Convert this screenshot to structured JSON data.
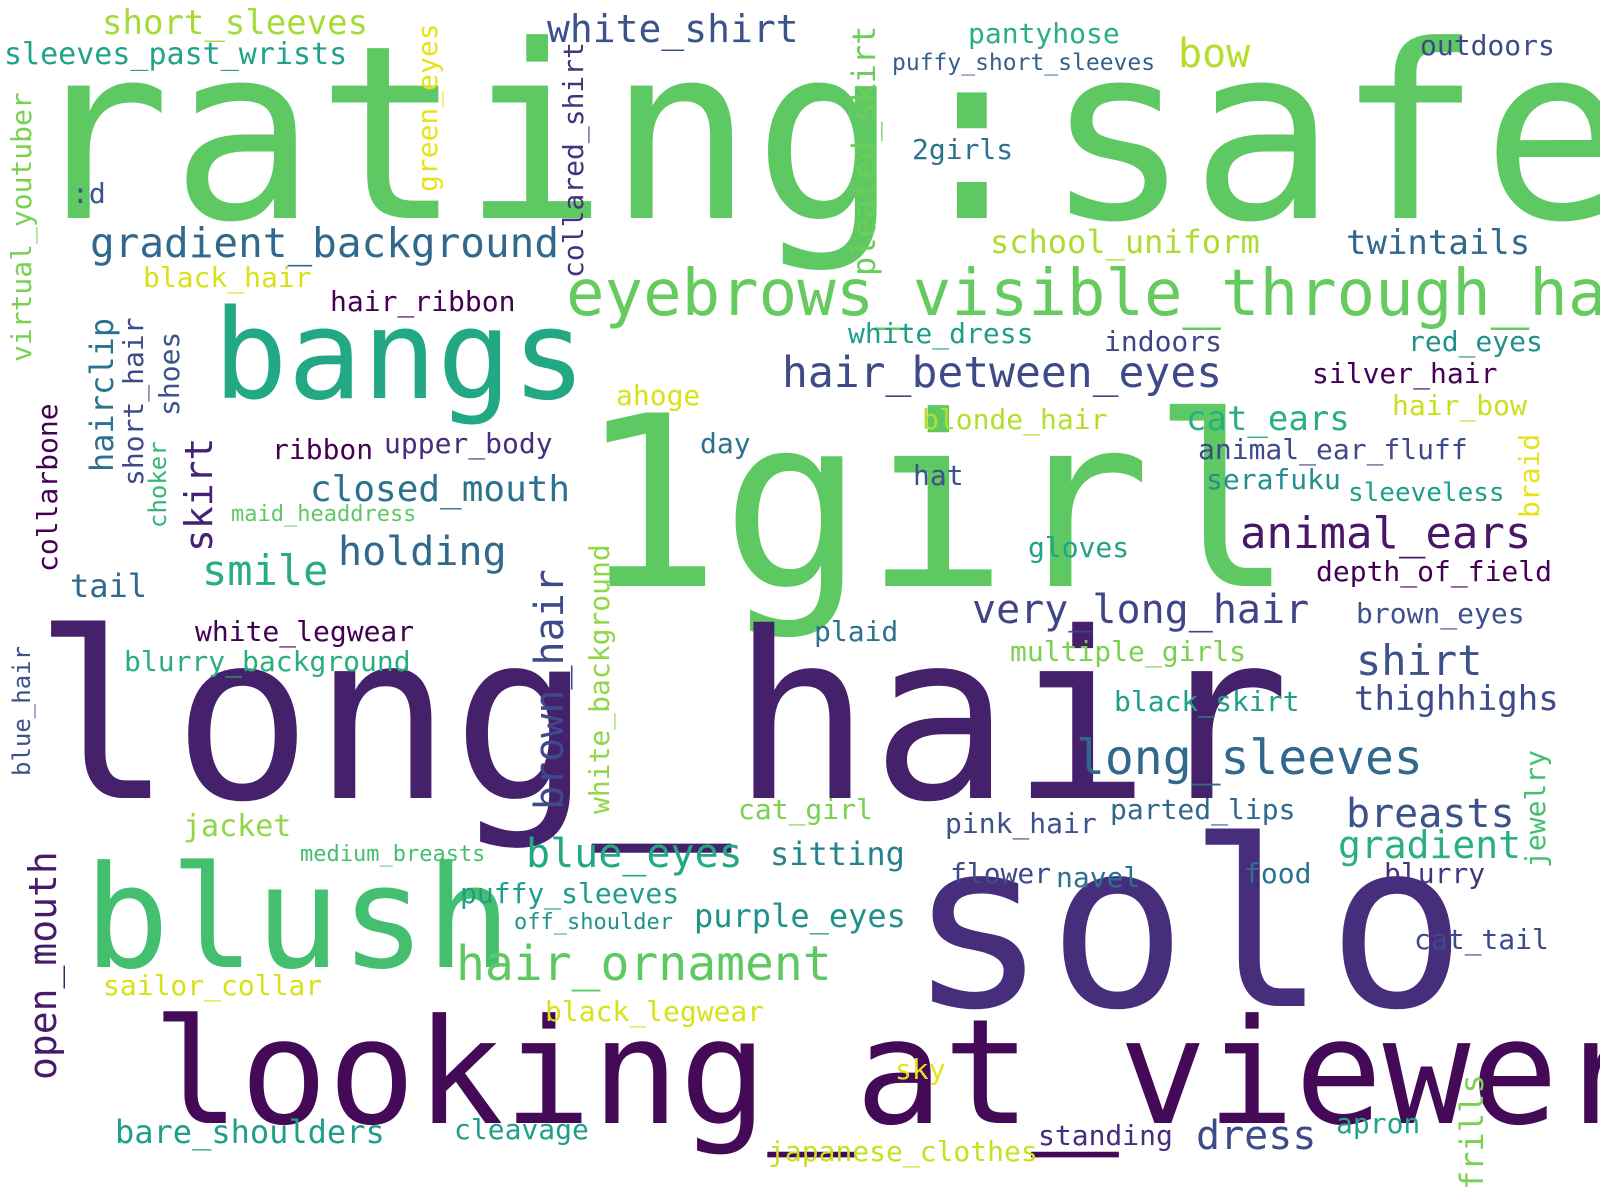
{
  "words": [
    {
      "text": "rating:safe",
      "color": "#5ec962"
    },
    {
      "text": "1girl",
      "color": "#5ec962"
    },
    {
      "text": "long_hair",
      "color": "#46216b"
    },
    {
      "text": "solo",
      "color": "#472e7c"
    },
    {
      "text": "looking_at_viewer",
      "color": "#440a57"
    },
    {
      "text": "blush",
      "color": "#44bf70"
    },
    {
      "text": "bangs",
      "color": "#22a884"
    },
    {
      "text": "eyebrows_visible_through_hair",
      "color": "#65cb5e"
    },
    {
      "text": "gradient_background",
      "color": "#31688e"
    },
    {
      "text": "hair_between_eyes",
      "color": "#3e4a89"
    },
    {
      "text": "white_shirt",
      "color": "#3b528b"
    },
    {
      "text": "short_sleeves",
      "color": "#a5db36"
    },
    {
      "text": "sleeves_past_wrists",
      "color": "#20a386"
    },
    {
      "text": "pantyhose",
      "color": "#2ab07f"
    },
    {
      "text": "puffy_short_sleeves",
      "color": "#35608d"
    },
    {
      "text": "outdoors",
      "color": "#3e4a89"
    },
    {
      "text": "bow",
      "color": "#b5de2b"
    },
    {
      "text": "2girls",
      "color": "#2c728e"
    },
    {
      "text": "school_uniform",
      "color": "#addc30"
    },
    {
      "text": "twintails",
      "color": "#31688e"
    },
    {
      "text": ":d",
      "color": "#3b528b"
    },
    {
      "text": "black_hair",
      "color": "#d8e219"
    },
    {
      "text": "hair_ribbon",
      "color": "#440154"
    },
    {
      "text": "white_dress",
      "color": "#1f9e89"
    },
    {
      "text": "indoors",
      "color": "#414487"
    },
    {
      "text": "red_eyes",
      "color": "#21918c"
    },
    {
      "text": "silver_hair",
      "color": "#440154"
    },
    {
      "text": "hair_bow",
      "color": "#c8e020"
    },
    {
      "text": "ahoge",
      "color": "#d8e219"
    },
    {
      "text": "blonde_hair",
      "color": "#b5de2b"
    },
    {
      "text": "cat_ears",
      "color": "#2ab07f"
    },
    {
      "text": "animal_ear_fluff",
      "color": "#3e4a89"
    },
    {
      "text": "ribbon",
      "color": "#440154"
    },
    {
      "text": "upper_body",
      "color": "#472d7b"
    },
    {
      "text": "day",
      "color": "#2c728e"
    },
    {
      "text": "hat",
      "color": "#3b528b"
    },
    {
      "text": "serafuku",
      "color": "#21918c"
    },
    {
      "text": "sleeveless",
      "color": "#1f9e89"
    },
    {
      "text": "closed_mouth",
      "color": "#2c728e"
    },
    {
      "text": "maid_headdress",
      "color": "#5ec962"
    },
    {
      "text": "animal_ears",
      "color": "#481769"
    },
    {
      "text": "holding",
      "color": "#31688e"
    },
    {
      "text": "smile",
      "color": "#27ad81"
    },
    {
      "text": "gloves",
      "color": "#20a386"
    },
    {
      "text": "depth_of_field",
      "color": "#440154"
    },
    {
      "text": "tail",
      "color": "#31688e"
    },
    {
      "text": "very_long_hair",
      "color": "#414487"
    },
    {
      "text": "brown_eyes",
      "color": "#3b528b"
    },
    {
      "text": "white_legwear",
      "color": "#440154"
    },
    {
      "text": "plaid",
      "color": "#2c728e"
    },
    {
      "text": "blurry_background",
      "color": "#29af7f"
    },
    {
      "text": "multiple_girls",
      "color": "#7ad151"
    },
    {
      "text": "shirt",
      "color": "#3b528b"
    },
    {
      "text": "thighhighs",
      "color": "#3e4a89"
    },
    {
      "text": "black_skirt",
      "color": "#1fa088"
    },
    {
      "text": "long_sleeves",
      "color": "#31688e"
    },
    {
      "text": "cat_girl",
      "color": "#7ad151"
    },
    {
      "text": "jacket",
      "color": "#8fd744"
    },
    {
      "text": "pink_hair",
      "color": "#3b528b"
    },
    {
      "text": "parted_lips",
      "color": "#31688e"
    },
    {
      "text": "breasts",
      "color": "#3b528b"
    },
    {
      "text": "gradient",
      "color": "#2ab07f"
    },
    {
      "text": "blue_eyes",
      "color": "#22a884"
    },
    {
      "text": "sitting",
      "color": "#26828e"
    },
    {
      "text": "medium_breasts",
      "color": "#44bf70"
    },
    {
      "text": "flower",
      "color": "#3e4a89"
    },
    {
      "text": "navel",
      "color": "#2c728e"
    },
    {
      "text": "food",
      "color": "#2c728e"
    },
    {
      "text": "blurry",
      "color": "#46337e"
    },
    {
      "text": "puffy_sleeves",
      "color": "#1f9e89"
    },
    {
      "text": "off_shoulder",
      "color": "#21918c"
    },
    {
      "text": "purple_eyes",
      "color": "#21918c"
    },
    {
      "text": "hair_ornament",
      "color": "#5ec962"
    },
    {
      "text": "cat_tail",
      "color": "#3e4a89"
    },
    {
      "text": "sailor_collar",
      "color": "#d8e219"
    },
    {
      "text": "black_legwear",
      "color": "#d8e219"
    },
    {
      "text": "sky",
      "color": "#e5e419"
    },
    {
      "text": "bare_shoulders",
      "color": "#1f9e89"
    },
    {
      "text": "cleavage",
      "color": "#1f9e89"
    },
    {
      "text": "japanese_clothes",
      "color": "#c8e020"
    },
    {
      "text": "standing",
      "color": "#472d7b"
    },
    {
      "text": "dress",
      "color": "#3e4a89"
    },
    {
      "text": "apron",
      "color": "#20a386"
    },
    {
      "text": "virtual_youtuber",
      "color": "#7ad151"
    },
    {
      "text": "green_eyes",
      "color": "#e5e419"
    },
    {
      "text": "collared_shirt",
      "color": "#46337e"
    },
    {
      "text": "pleated_skirt",
      "color": "#6ccd5a"
    },
    {
      "text": "hairclip",
      "color": "#2c728e"
    },
    {
      "text": "short_hair",
      "color": "#3e4a89"
    },
    {
      "text": "shoes",
      "color": "#3b528b"
    },
    {
      "text": "skirt",
      "color": "#482071"
    },
    {
      "text": "collarbone",
      "color": "#440154"
    },
    {
      "text": "choker",
      "color": "#35b779"
    },
    {
      "text": "open_mouth",
      "color": "#481a6c"
    },
    {
      "text": "brown_hair",
      "color": "#3e4a89"
    },
    {
      "text": "white_background",
      "color": "#8fd744"
    },
    {
      "text": "blue_hair",
      "color": "#3b528b"
    },
    {
      "text": "braid",
      "color": "#e5e419"
    },
    {
      "text": "jewelry",
      "color": "#44bf70"
    },
    {
      "text": "frills",
      "color": "#7ad151"
    }
  ]
}
